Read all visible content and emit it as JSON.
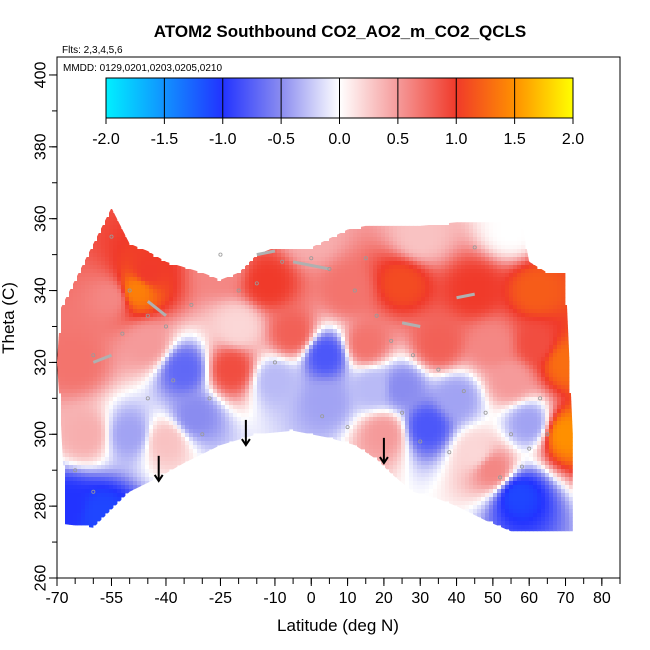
{
  "chart_data": {
    "type": "heatmap",
    "title": "ATOM2 Southbound CO2_AO2_m_CO2_QCLS",
    "flights_note": "Flts: 2,3,4,5,6",
    "dates_note": "MMDD: 0129,0201,0203,0205,0210",
    "xlabel": "Latitude (deg N)",
    "ylabel": "Theta (C)",
    "xlim": [
      -70,
      85
    ],
    "ylim": [
      260,
      405
    ],
    "xticks": [
      -70,
      -55,
      -40,
      -25,
      -10,
      0,
      10,
      20,
      30,
      40,
      50,
      60,
      70,
      80
    ],
    "xtick_labels": [
      "-70",
      "-55",
      "-40",
      "-25",
      "-10",
      "0",
      "10",
      "20",
      "30",
      "40",
      "50",
      "60",
      "70",
      "80"
    ],
    "yticks": [
      260,
      280,
      300,
      320,
      340,
      360,
      380,
      400
    ],
    "ytick_labels": [
      "260",
      "280",
      "300",
      "320",
      "340",
      "360",
      "380",
      "400"
    ],
    "colorbar": {
      "range": [
        -2.0,
        2.0
      ],
      "ticks": [
        -2.0,
        -1.5,
        -1.0,
        -0.5,
        0.0,
        0.5,
        1.0,
        1.5,
        2.0
      ],
      "tick_labels": [
        "-2.0",
        "-1.5",
        "-1.0",
        "-0.5",
        "0.0",
        "0.5",
        "1.0",
        "1.5",
        "2.0"
      ],
      "stops": [
        {
          "value": -2.0,
          "color": "#00f0ff"
        },
        {
          "value": -1.0,
          "color": "#2233ff"
        },
        {
          "value": -0.5,
          "color": "#8a8cf0"
        },
        {
          "value": 0.0,
          "color": "#ffffff"
        },
        {
          "value": 0.5,
          "color": "#f59a9a"
        },
        {
          "value": 1.0,
          "color": "#f03a2a"
        },
        {
          "value": 1.5,
          "color": "#ff9000"
        },
        {
          "value": 2.0,
          "color": "#ffff00"
        }
      ]
    },
    "domain": {
      "top": [
        [
          -55,
          363
        ],
        [
          -50,
          353
        ],
        [
          -45,
          351
        ],
        [
          -40,
          348
        ],
        [
          -30,
          345
        ],
        [
          -25,
          343
        ],
        [
          -20,
          345
        ],
        [
          -15,
          350
        ],
        [
          -10,
          352
        ],
        [
          0,
          352
        ],
        [
          10,
          357
        ],
        [
          15,
          358
        ],
        [
          20,
          358
        ],
        [
          30,
          358
        ],
        [
          40,
          359
        ],
        [
          50,
          359
        ],
        [
          58,
          359
        ],
        [
          60,
          348
        ],
        [
          65,
          345
        ],
        [
          70,
          345
        ],
        [
          72,
          300
        ],
        [
          72,
          273
        ]
      ],
      "bottom": [
        [
          -69,
          335
        ],
        [
          -70,
          320
        ],
        [
          -69,
          305
        ],
        [
          -68,
          285
        ],
        [
          -68,
          275
        ],
        [
          -60,
          274
        ],
        [
          -50,
          284
        ],
        [
          -42,
          288
        ],
        [
          -35,
          292
        ],
        [
          -25,
          297
        ],
        [
          -15,
          300
        ],
        [
          -5,
          301
        ],
        [
          5,
          299
        ],
        [
          12,
          297
        ],
        [
          18,
          293
        ],
        [
          22,
          289
        ],
        [
          28,
          284
        ],
        [
          35,
          282
        ],
        [
          40,
          280
        ],
        [
          48,
          276
        ],
        [
          55,
          273
        ],
        [
          65,
          273
        ],
        [
          72,
          273
        ]
      ]
    },
    "anomalies": [
      {
        "lat": -67,
        "theta": 280,
        "value": -1.0
      },
      {
        "lat": -58,
        "theta": 278,
        "value": -1.1
      },
      {
        "lat": -50,
        "theta": 300,
        "value": -0.4
      },
      {
        "lat": -35,
        "theta": 318,
        "value": -0.7
      },
      {
        "lat": -32,
        "theta": 305,
        "value": -0.5
      },
      {
        "lat": -20,
        "theta": 330,
        "value": 0.2
      },
      {
        "lat": -10,
        "theta": 315,
        "value": -0.3
      },
      {
        "lat": 4,
        "theta": 322,
        "value": -0.8
      },
      {
        "lat": 4,
        "theta": 309,
        "value": -0.4
      },
      {
        "lat": 17,
        "theta": 313,
        "value": -0.3
      },
      {
        "lat": 25,
        "theta": 313,
        "value": -0.5
      },
      {
        "lat": 32,
        "theta": 302,
        "value": -0.8
      },
      {
        "lat": 40,
        "theta": 310,
        "value": -0.4
      },
      {
        "lat": 57,
        "theta": 283,
        "value": -1.1
      },
      {
        "lat": 60,
        "theta": 303,
        "value": -0.4
      },
      {
        "lat": 45,
        "theta": 295,
        "value": 0.2
      },
      {
        "lat": -55,
        "theta": 338,
        "value": 0.6
      },
      {
        "lat": -48,
        "theta": 340,
        "value": 1.4
      },
      {
        "lat": -45,
        "theta": 345,
        "value": 1.0
      },
      {
        "lat": -25,
        "theta": 346,
        "value": 0.6
      },
      {
        "lat": -12,
        "theta": 342,
        "value": 1.0
      },
      {
        "lat": 10,
        "theta": 340,
        "value": 0.7
      },
      {
        "lat": 25,
        "theta": 342,
        "value": 1.1
      },
      {
        "lat": 45,
        "theta": 340,
        "value": 1.0
      },
      {
        "lat": 62,
        "theta": 340,
        "value": 1.2
      },
      {
        "lat": 70,
        "theta": 320,
        "value": 1.3
      },
      {
        "lat": 70,
        "theta": 300,
        "value": 1.5
      },
      {
        "lat": 62,
        "theta": 325,
        "value": 0.9
      },
      {
        "lat": 55,
        "theta": 315,
        "value": 0.5
      },
      {
        "lat": -65,
        "theta": 320,
        "value": 0.7
      },
      {
        "lat": -62,
        "theta": 300,
        "value": 0.4
      },
      {
        "lat": -45,
        "theta": 325,
        "value": 0.5
      },
      {
        "lat": -22,
        "theta": 318,
        "value": 0.9
      },
      {
        "lat": -5,
        "theta": 328,
        "value": 0.8
      },
      {
        "lat": 15,
        "theta": 325,
        "value": 0.7
      },
      {
        "lat": 35,
        "theta": 325,
        "value": 0.8
      },
      {
        "lat": 50,
        "theta": 325,
        "value": 0.6
      },
      {
        "lat": 20,
        "theta": 300,
        "value": 0.5
      },
      {
        "lat": 50,
        "theta": 290,
        "value": 0.6
      },
      {
        "lat": -40,
        "theta": 298,
        "value": 0.3
      },
      {
        "lat": 0,
        "theta": 355,
        "value": 0.4
      },
      {
        "lat": 30,
        "theta": 355,
        "value": 0.3
      },
      {
        "lat": 55,
        "theta": 357,
        "value": 0.0
      }
    ],
    "arrows": [
      {
        "lat": -42,
        "theta_start": 294,
        "theta_end": 287
      },
      {
        "lat": -18,
        "theta_start": 304,
        "theta_end": 297
      },
      {
        "lat": 20,
        "theta_start": 299,
        "theta_end": 292
      }
    ],
    "sample_points": [
      [
        -55,
        355
      ],
      [
        -50,
        340
      ],
      [
        -45,
        333
      ],
      [
        -60,
        322
      ],
      [
        -52,
        328
      ],
      [
        -40,
        330
      ],
      [
        -33,
        336
      ],
      [
        -28,
        310
      ],
      [
        -20,
        340
      ],
      [
        -15,
        342
      ],
      [
        -8,
        348
      ],
      [
        0,
        349
      ],
      [
        5,
        346
      ],
      [
        12,
        340
      ],
      [
        18,
        333
      ],
      [
        22,
        326
      ],
      [
        28,
        322
      ],
      [
        35,
        318
      ],
      [
        42,
        312
      ],
      [
        48,
        306
      ],
      [
        55,
        300
      ],
      [
        60,
        296
      ],
      [
        65,
        300
      ],
      [
        -65,
        290
      ],
      [
        -60,
        284
      ],
      [
        -45,
        310
      ],
      [
        -38,
        315
      ],
      [
        -30,
        300
      ],
      [
        -10,
        320
      ],
      [
        3,
        305
      ],
      [
        10,
        302
      ],
      [
        25,
        306
      ],
      [
        30,
        298
      ],
      [
        38,
        295
      ],
      [
        52,
        288
      ],
      [
        58,
        291
      ],
      [
        63,
        310
      ],
      [
        -25,
        350
      ],
      [
        15,
        349
      ],
      [
        45,
        352
      ]
    ],
    "flight_tracks": [
      [
        [
          -15,
          350
        ],
        [
          -10,
          351
        ]
      ],
      [
        [
          -5,
          348
        ],
        [
          5,
          346
        ]
      ],
      [
        [
          -45,
          337
        ],
        [
          -40,
          333
        ]
      ],
      [
        [
          -60,
          320
        ],
        [
          -55,
          322
        ]
      ],
      [
        [
          25,
          331
        ],
        [
          30,
          330
        ]
      ],
      [
        [
          40,
          338
        ],
        [
          45,
          339
        ]
      ]
    ]
  }
}
